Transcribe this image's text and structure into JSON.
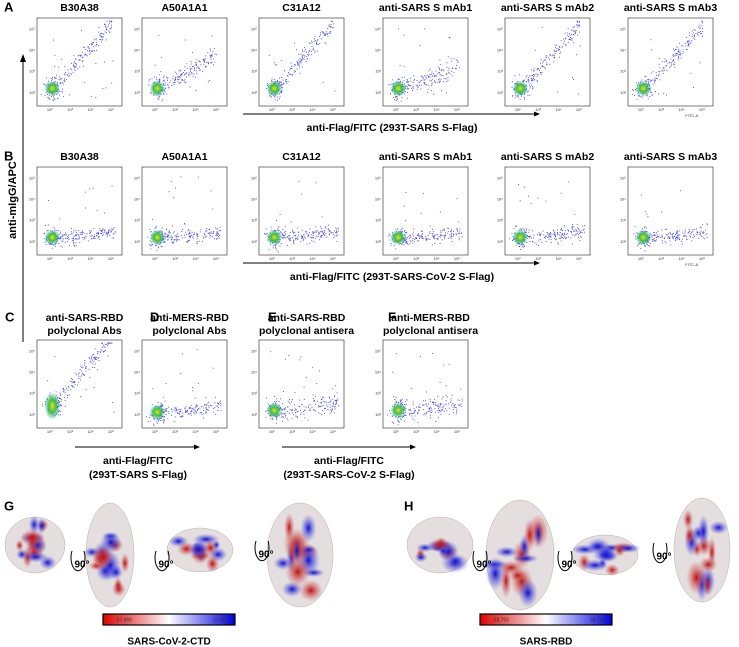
{
  "y_axis_label": "anti-mIgG/APC",
  "tick_labels": [
    "10²",
    "10³",
    "10⁴",
    "10⁵"
  ],
  "fitc_label": "FITC-A",
  "A": {
    "letter": "A",
    "titles": [
      "B30A38",
      "A50A1A1",
      "C31A12",
      "anti-SARS S mAb1",
      "anti-SARS S mAb2",
      "anti-SARS S mAb3"
    ],
    "x_axis_label": "anti-Flag/FITC (293T-SARS S-Flag)"
  },
  "B": {
    "letter": "B",
    "titles": [
      "B30A38",
      "A50A1A1",
      "C31A12",
      "anti-SARS S mAb1",
      "anti-SARS S mAb2",
      "anti-SARS S mAb3"
    ],
    "x_axis_label": "anti-Flag/FITC (293T-SARS-CoV-2 S-Flag)"
  },
  "C": {
    "letter": "C",
    "title": [
      "anti-SARS-RBD",
      "polyclonal Abs"
    ]
  },
  "D": {
    "letter": "D",
    "title": [
      "anti-MERS-RBD",
      "polyclonal Abs"
    ]
  },
  "E": {
    "letter": "E",
    "title": [
      "anti-SARS-RBD",
      "polyclonal antisera"
    ]
  },
  "F": {
    "letter": "F",
    "title": [
      "anti-MERS-RBD",
      "polyclonal antisera"
    ]
  },
  "CD_axis_label": [
    "anti-Flag/FITC",
    "(293T-SARS S-Flag)"
  ],
  "EF_axis_label": [
    "anti-Flag/FITC",
    "(293T-SARS-CoV-2 S-Flag)"
  ],
  "G": {
    "letter": "G",
    "rotation": "90°",
    "colorbar": [
      "-57.966",
      "57.966"
    ],
    "label": "SARS-CoV-2-CTD"
  },
  "H": {
    "letter": "H",
    "rotation": "90°",
    "colorbar": [
      "-58.793",
      "58.793"
    ],
    "label": "SARS-RBD"
  }
}
